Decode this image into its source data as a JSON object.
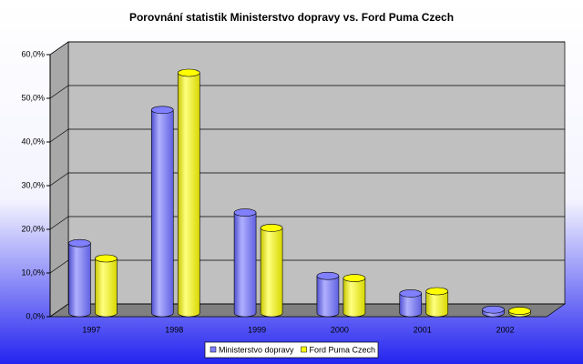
{
  "chart_data": {
    "type": "bar",
    "title": "Porovnání statistik Ministerstvo dopravy vs. Ford Puma Czech",
    "categories": [
      "1997",
      "1998",
      "1999",
      "2000",
      "2001",
      "2002"
    ],
    "series": [
      {
        "name": "Ministerstvo dopravy",
        "color": "#8080ff",
        "values": [
          16,
          46.5,
          23,
          8.5,
          4.5,
          0.8
        ]
      },
      {
        "name": "Ford Puma Czech",
        "color": "#ffff00",
        "values": [
          12.5,
          55,
          19.5,
          8,
          5,
          0.5
        ]
      }
    ],
    "ylim": [
      0,
      60
    ],
    "yticks": [
      {
        "value": 0,
        "label": "0,0%"
      },
      {
        "value": 10,
        "label": "10,0%"
      },
      {
        "value": 20,
        "label": "20,0%"
      },
      {
        "value": 30,
        "label": "30,0%"
      },
      {
        "value": 40,
        "label": "40,0%"
      },
      {
        "value": 50,
        "label": "50,0%"
      },
      {
        "value": 60,
        "label": "60,0%"
      }
    ],
    "grid": true,
    "legend": "bottom"
  }
}
